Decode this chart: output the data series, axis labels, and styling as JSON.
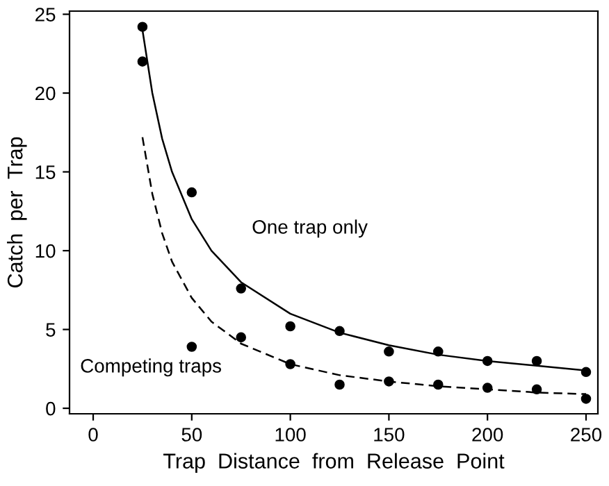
{
  "chart_data": {
    "type": "scatter",
    "xlabel": "Trap  Distance  from  Release  Point",
    "ylabel": "Catch  per  Trap",
    "xlim": [
      -12,
      256
    ],
    "ylim": [
      -0.35,
      25.2
    ],
    "xticks": [
      0,
      50,
      100,
      150,
      200,
      250
    ],
    "yticks": [
      0,
      5,
      10,
      15,
      20,
      25
    ],
    "grid": false,
    "legend": false,
    "marker": "circle",
    "series": [
      {
        "color": "#000000",
        "x": [
          25,
          50,
          75,
          100,
          125,
          150,
          175,
          200,
          225,
          250
        ],
        "values": [
          24.2,
          13.7,
          7.6,
          5.2,
          4.9,
          3.6,
          3.6,
          3.0,
          3.0,
          2.3
        ]
      },
      {
        "color": "#000000",
        "x": [
          25,
          50,
          75,
          100,
          125,
          150,
          175,
          200,
          225,
          250
        ],
        "values": [
          22.0,
          3.9,
          4.5,
          2.8,
          1.5,
          1.7,
          1.5,
          1.3,
          1.2,
          0.6
        ]
      },
      {
        "type": "line",
        "color": "#000000",
        "line_style": "solid",
        "marker": "none",
        "x": [
          25,
          30,
          35,
          40,
          50,
          60,
          75,
          100,
          125,
          150,
          175,
          200,
          225,
          250
        ],
        "values": [
          24,
          20,
          17.1,
          15,
          12,
          10,
          8,
          6,
          4.8,
          4,
          3.4,
          3,
          2.7,
          2.4
        ]
      },
      {
        "type": "line",
        "color": "#000000",
        "line_style": "dashed",
        "marker": "none",
        "x": [
          25,
          30,
          35,
          40,
          50,
          60,
          75,
          100,
          125,
          150,
          175,
          200,
          225,
          250
        ],
        "values": [
          17.2,
          13.6,
          11.1,
          9.3,
          7.0,
          5.5,
          4.1,
          2.8,
          2.1,
          1.7,
          1.4,
          1.2,
          1.0,
          0.9
        ]
      }
    ],
    "annotations": [
      "One trap only",
      "Competing traps"
    ]
  }
}
